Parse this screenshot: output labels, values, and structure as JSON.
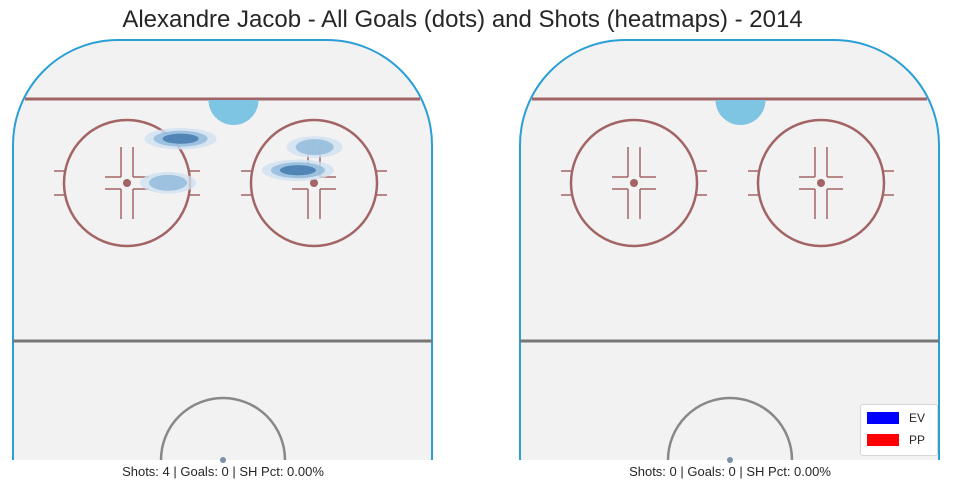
{
  "title": "Alexandre Jacob - All Goals (dots) and Shots (heatmaps) - 2014",
  "colors": {
    "rink_board": "#2a9fd6",
    "goal_line": "#a36465",
    "faceoff": "#a36465",
    "blue_line": "#777777",
    "crease": "#7ec4e3",
    "ice": "#f2f2f2",
    "heat_light": "#cfe0f0",
    "heat_mid": "#8fb9dc",
    "heat_dark": "#3f76ab"
  },
  "chart_data": [
    {
      "type": "heatmap",
      "panel": "left",
      "caption": "Shots: 4 | Goals: 0 | SH Pct: 0.00%",
      "shots": 4,
      "goals": 0,
      "sh_pct": "0.00%",
      "goal_points": [],
      "shot_density_regions": [
        {
          "x_frac": 0.4,
          "y_frac": 0.235,
          "intensity": 3
        },
        {
          "x_frac": 0.37,
          "y_frac": 0.34,
          "intensity": 2
        },
        {
          "x_frac": 0.68,
          "y_frac": 0.31,
          "intensity": 3
        },
        {
          "x_frac": 0.72,
          "y_frac": 0.255,
          "intensity": 2
        }
      ]
    },
    {
      "type": "heatmap",
      "panel": "right",
      "caption": "Shots: 0 | Goals: 0 | SH Pct: 0.00%",
      "shots": 0,
      "goals": 0,
      "sh_pct": "0.00%",
      "goal_points": [],
      "shot_density_regions": []
    }
  ],
  "legend": {
    "placement": "lower-right",
    "entries": [
      {
        "label": "EV",
        "color": "#0000ff"
      },
      {
        "label": "PP",
        "color": "#ff0000"
      }
    ]
  }
}
